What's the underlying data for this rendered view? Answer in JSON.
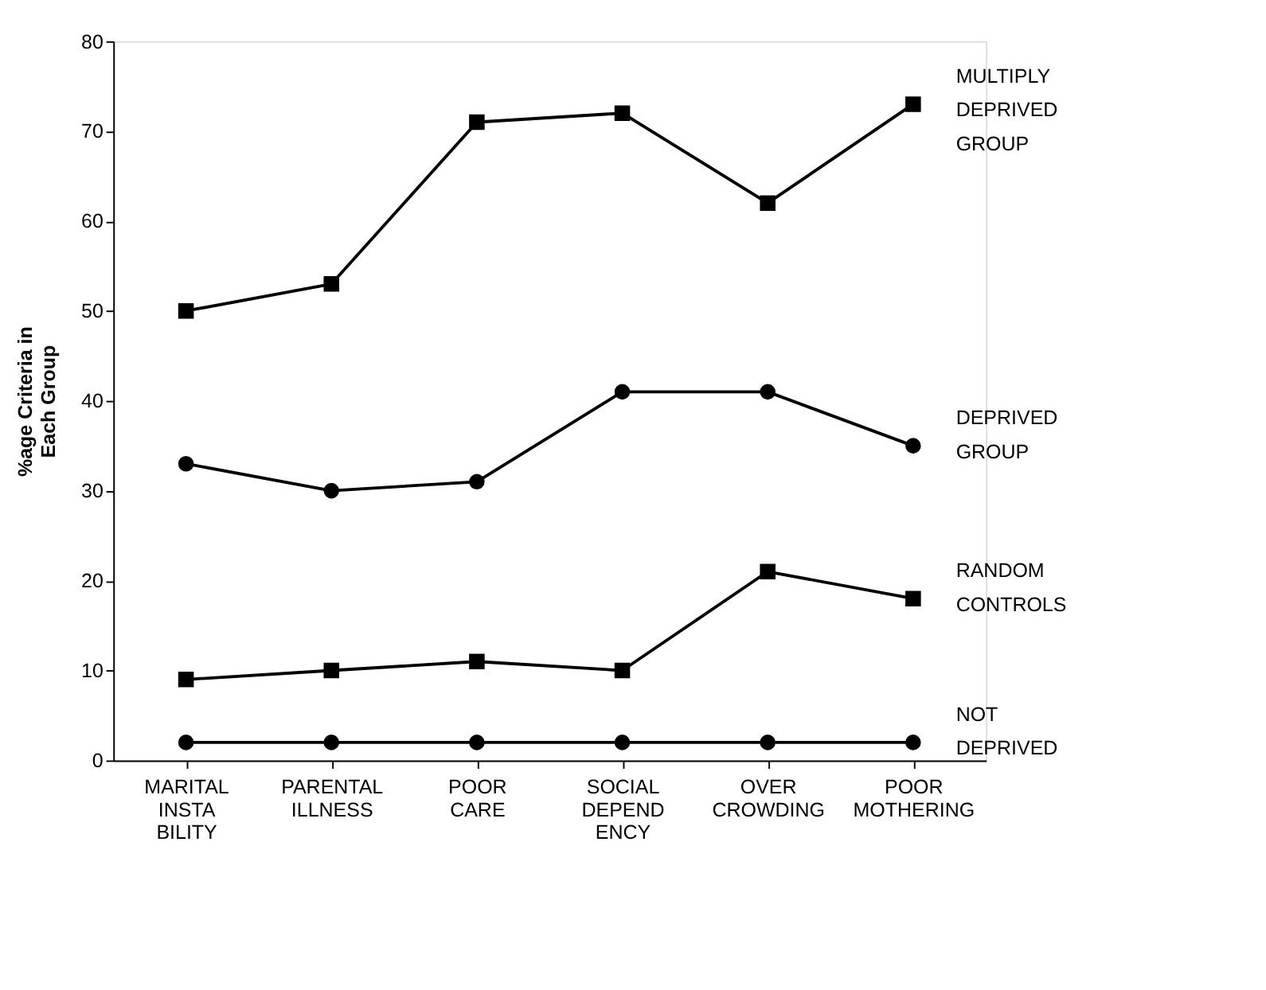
{
  "chart_data": {
    "type": "line",
    "ylabel": "%age Criteria in\nEach Group",
    "categories": [
      "MARITAL\nINSTA\nBILITY",
      "PARENTAL\nILLNESS",
      "POOR\nCARE",
      "SOCIAL\nDEPEND\nENCY",
      "OVER\nCROWDING",
      "POOR\nMOTHERING"
    ],
    "series": [
      {
        "name": "MULTIPLY\nDEPRIVED\nGROUP",
        "color": "#000000",
        "marker": "square",
        "values": [
          50,
          53,
          71,
          72,
          62,
          73
        ]
      },
      {
        "name": "DEPRIVED\nGROUP",
        "color": "#000000",
        "marker": "circle",
        "values": [
          33,
          30,
          31,
          41,
          41,
          35
        ]
      },
      {
        "name": "RANDOM\nCONTROLS",
        "color": "#000000",
        "marker": "square",
        "values": [
          9,
          10,
          11,
          10,
          21,
          18
        ]
      },
      {
        "name": "NOT\nDEPRIVED",
        "color": "#000000",
        "marker": "circle",
        "values": [
          2,
          2,
          2,
          2,
          2,
          2
        ]
      }
    ],
    "ylim": [
      0,
      80
    ],
    "yticks": [
      0,
      10,
      20,
      30,
      40,
      50,
      60,
      70,
      80
    ],
    "grid": false,
    "legend": false,
    "line_style": "solid"
  }
}
